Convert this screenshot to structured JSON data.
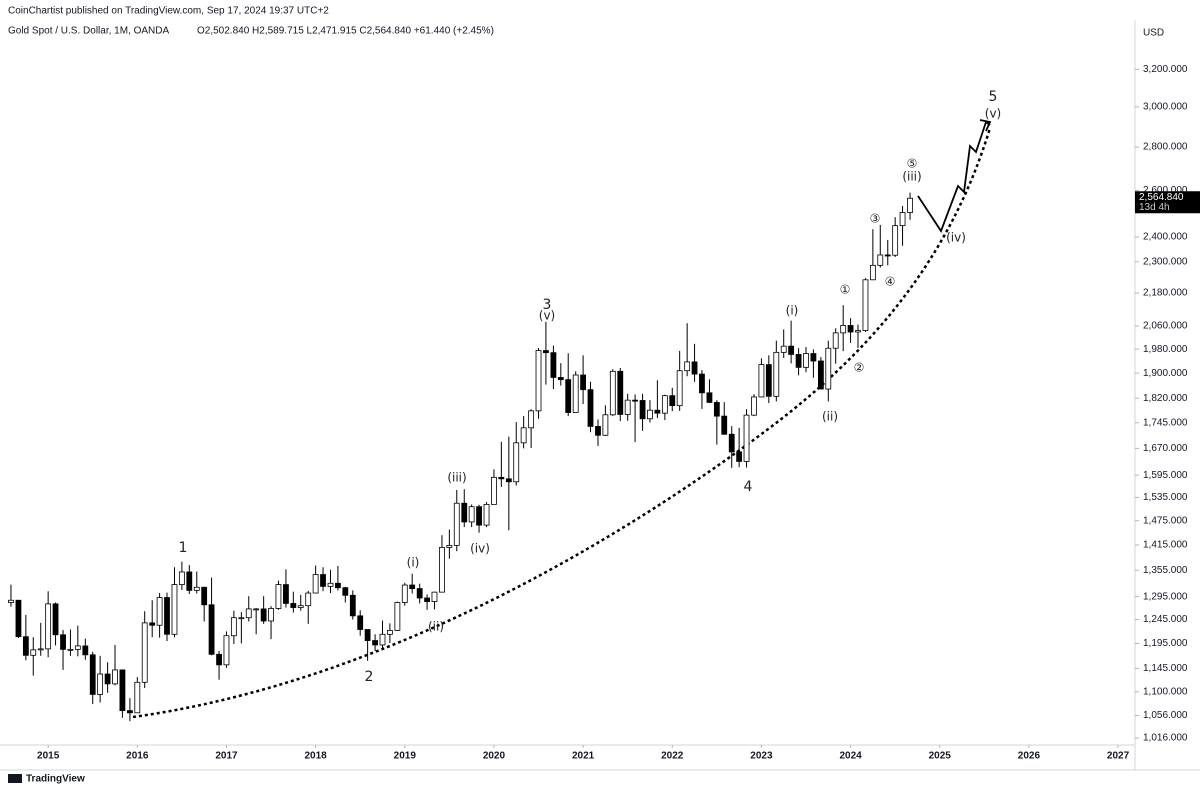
{
  "header": {
    "author_line": "CoinChartist published on TradingView.com, Sep 17, 2024 19:37 UTC+2",
    "symbol": "Gold Spot / U.S. Dollar, 1M, OANDA",
    "ohlc": "O2,502.840  H2,589.715  L2,471.915  C2,564.840  +61.440 (+2.45%)"
  },
  "footer": {
    "brand": "TradingView"
  },
  "chart_data": {
    "type": "candlestick",
    "y_axis_label": "USD",
    "log_scale": true,
    "grid": false,
    "up_color": "#ffffff",
    "down_color": "#000000",
    "edge_color": "#000000",
    "last_price_label": "2,564.840",
    "countdown": "13d 4h",
    "xlim": [
      2014.46,
      2027.19
    ],
    "xticks": [
      2015,
      2016,
      2017,
      2018,
      2019,
      2020,
      2021,
      2022,
      2023,
      2024,
      2025,
      2026,
      2027
    ],
    "ylim": [
      1004,
      3336
    ],
    "yticks": [
      {
        "value": 1016,
        "label": "1,016.000"
      },
      {
        "value": 1056,
        "label": "1,056.000"
      },
      {
        "value": 1100,
        "label": "1,100.000"
      },
      {
        "value": 1145,
        "label": "1,145.000"
      },
      {
        "value": 1195,
        "label": "1,195.000"
      },
      {
        "value": 1245,
        "label": "1,245.000"
      },
      {
        "value": 1295,
        "label": "1,295.000"
      },
      {
        "value": 1355,
        "label": "1,355.000"
      },
      {
        "value": 1415,
        "label": "1,415.000"
      },
      {
        "value": 1475,
        "label": "1,475.000"
      },
      {
        "value": 1535,
        "label": "1,535.000"
      },
      {
        "value": 1595,
        "label": "1,595.000"
      },
      {
        "value": 1670,
        "label": "1,670.000"
      },
      {
        "value": 1745,
        "label": "1,745.000"
      },
      {
        "value": 1820,
        "label": "1,820.000"
      },
      {
        "value": 1900,
        "label": "1,900.000"
      },
      {
        "value": 1980,
        "label": "1,980.000"
      },
      {
        "value": 2060,
        "label": "2,060.000"
      },
      {
        "value": 2180,
        "label": "2,180.000"
      },
      {
        "value": 2300,
        "label": "2,300.000"
      },
      {
        "value": 2400,
        "label": "2,400.000"
      },
      {
        "value": 2600,
        "label": "2,600.000"
      },
      {
        "value": 2800,
        "label": "2,800.000"
      },
      {
        "value": 3000,
        "label": "3,000.000"
      },
      {
        "value": 3200,
        "label": "3,200.000"
      }
    ],
    "x": [
      2014.583,
      2014.667,
      2014.75,
      2014.833,
      2014.917,
      2015,
      2015.083,
      2015.167,
      2015.25,
      2015.333,
      2015.417,
      2015.5,
      2015.583,
      2015.667,
      2015.75,
      2015.833,
      2015.917,
      2016,
      2016.083,
      2016.167,
      2016.25,
      2016.333,
      2016.417,
      2016.5,
      2016.583,
      2016.667,
      2016.75,
      2016.833,
      2016.917,
      2017,
      2017.083,
      2017.167,
      2017.25,
      2017.333,
      2017.417,
      2017.5,
      2017.583,
      2017.667,
      2017.75,
      2017.833,
      2017.917,
      2018,
      2018.083,
      2018.167,
      2018.25,
      2018.333,
      2018.417,
      2018.5,
      2018.583,
      2018.667,
      2018.75,
      2018.833,
      2018.917,
      2019,
      2019.083,
      2019.167,
      2019.25,
      2019.333,
      2019.417,
      2019.5,
      2019.583,
      2019.667,
      2019.75,
      2019.833,
      2019.917,
      2020,
      2020.083,
      2020.167,
      2020.25,
      2020.333,
      2020.417,
      2020.5,
      2020.583,
      2020.667,
      2020.75,
      2020.833,
      2020.917,
      2021,
      2021.083,
      2021.167,
      2021.25,
      2021.333,
      2021.417,
      2021.5,
      2021.583,
      2021.667,
      2021.75,
      2021.833,
      2021.917,
      2022,
      2022.083,
      2022.167,
      2022.25,
      2022.333,
      2022.417,
      2022.5,
      2022.583,
      2022.667,
      2022.75,
      2022.833,
      2022.917,
      2023,
      2023.083,
      2023.167,
      2023.25,
      2023.333,
      2023.417,
      2023.5,
      2023.583,
      2023.667,
      2023.75,
      2023.833,
      2023.917,
      2024,
      2024.083,
      2024.167,
      2024.25,
      2024.333,
      2024.417,
      2024.5,
      2024.583,
      2024.667
    ],
    "open": [
      1282,
      1287,
      1209,
      1171,
      1182,
      1184,
      1279,
      1213,
      1183,
      1183,
      1190,
      1172,
      1095,
      1134,
      1115,
      1142,
      1065,
      1061,
      1118,
      1238,
      1233,
      1293,
      1214,
      1322,
      1351,
      1309,
      1316,
      1277,
      1173,
      1152,
      1211,
      1249,
      1249,
      1268,
      1268,
      1242,
      1269,
      1322,
      1280,
      1271,
      1275,
      1303,
      1345,
      1318,
      1325,
      1315,
      1298,
      1253,
      1224,
      1201,
      1192,
      1214,
      1222,
      1282,
      1321,
      1313,
      1292,
      1284,
      1305,
      1409,
      1414,
      1520,
      1472,
      1511,
      1464,
      1517,
      1589,
      1585,
      1577,
      1686,
      1730,
      1781,
      1975,
      1968,
      1886,
      1879,
      1776,
      1894,
      1847,
      1734,
      1708,
      1769,
      1906,
      1770,
      1814,
      1813,
      1757,
      1783,
      1774,
      1828,
      1797,
      1908,
      1937,
      1897,
      1837,
      1807,
      1765,
      1711,
      1660,
      1633,
      1768,
      1824,
      1928,
      1826,
      1969,
      1990,
      1962,
      1919,
      1965,
      1940,
      1849,
      1983,
      2036,
      2062,
      2039,
      2044,
      2230,
      2286,
      2327,
      2326,
      2447,
      2502.84
    ],
    "high": [
      1322,
      1287,
      1255,
      1208,
      1238,
      1307,
      1282,
      1223,
      1224,
      1232,
      1205,
      1178,
      1170,
      1157,
      1192,
      1143,
      1088,
      1128,
      1263,
      1287,
      1303,
      1304,
      1362,
      1375,
      1367,
      1352,
      1317,
      1338,
      1180,
      1220,
      1264,
      1261,
      1296,
      1270,
      1296,
      1274,
      1331,
      1357,
      1306,
      1299,
      1308,
      1366,
      1362,
      1356,
      1365,
      1317,
      1309,
      1265,
      1223,
      1214,
      1243,
      1237,
      1284,
      1326,
      1347,
      1324,
      1300,
      1306,
      1439,
      1453,
      1555,
      1557,
      1517,
      1516,
      1523,
      1611,
      1689,
      1704,
      1747,
      1765,
      1786,
      1984,
      2075,
      1992,
      1933,
      1966,
      1906,
      1959,
      1872,
      1755,
      1798,
      1913,
      1917,
      1834,
      1832,
      1834,
      1814,
      1877,
      1831,
      1853,
      1974,
      2070,
      1998,
      1910,
      1880,
      1814,
      1808,
      1735,
      1730,
      1786,
      1833,
      1949,
      1959,
      2009,
      2048,
      2079,
      1983,
      1987,
      1979,
      1953,
      2009,
      2052,
      2135,
      2088,
      2065,
      2236,
      2432,
      2450,
      2388,
      2483,
      2531,
      2589.715
    ],
    "low": [
      1273,
      1206,
      1161,
      1131,
      1170,
      1167,
      1191,
      1142,
      1170,
      1169,
      1162,
      1077,
      1080,
      1098,
      1112,
      1052,
      1046,
      1061,
      1107,
      1208,
      1207,
      1200,
      1208,
      1310,
      1301,
      1302,
      1241,
      1171,
      1123,
      1146,
      1194,
      1195,
      1241,
      1214,
      1236,
      1204,
      1266,
      1271,
      1260,
      1264,
      1236,
      1302,
      1307,
      1303,
      1309,
      1282,
      1245,
      1211,
      1160,
      1180,
      1182,
      1196,
      1221,
      1275,
      1302,
      1280,
      1266,
      1267,
      1305,
      1382,
      1400,
      1459,
      1459,
      1445,
      1459,
      1517,
      1563,
      1451,
      1567,
      1670,
      1671,
      1757,
      1863,
      1849,
      1860,
      1765,
      1776,
      1802,
      1717,
      1677,
      1706,
      1765,
      1750,
      1751,
      1688,
      1721,
      1746,
      1759,
      1753,
      1780,
      1781,
      1890,
      1872,
      1787,
      1805,
      1681,
      1709,
      1615,
      1617,
      1616,
      1765,
      1823,
      1805,
      1810,
      1950,
      1932,
      1893,
      1903,
      1885,
      1848,
      1810,
      1931,
      1973,
      2001,
      1984,
      2039,
      2229,
      2277,
      2286,
      2319,
      2364,
      2471.915
    ],
    "close": [
      1287,
      1209,
      1171,
      1182,
      1184,
      1279,
      1213,
      1183,
      1183,
      1190,
      1172,
      1095,
      1134,
      1115,
      1142,
      1065,
      1061,
      1118,
      1238,
      1233,
      1293,
      1214,
      1322,
      1351,
      1309,
      1316,
      1277,
      1173,
      1152,
      1211,
      1249,
      1249,
      1268,
      1268,
      1242,
      1269,
      1322,
      1280,
      1271,
      1275,
      1303,
      1345,
      1318,
      1325,
      1315,
      1298,
      1253,
      1224,
      1201,
      1192,
      1214,
      1222,
      1282,
      1321,
      1313,
      1292,
      1284,
      1305,
      1409,
      1414,
      1520,
      1472,
      1511,
      1464,
      1517,
      1589,
      1585,
      1577,
      1686,
      1730,
      1781,
      1975,
      1968,
      1886,
      1879,
      1776,
      1894,
      1847,
      1734,
      1708,
      1769,
      1906,
      1770,
      1814,
      1813,
      1757,
      1783,
      1774,
      1828,
      1797,
      1908,
      1937,
      1897,
      1837,
      1807,
      1765,
      1711,
      1660,
      1633,
      1768,
      1824,
      1928,
      1826,
      1969,
      1990,
      1962,
      1919,
      1965,
      1940,
      1849,
      1983,
      2036,
      2062,
      2039,
      2044,
      2230,
      2286,
      2327,
      2326,
      2447,
      2503,
      2564.84
    ],
    "annotations": [
      "1",
      "2",
      "3",
      "(v)",
      "4",
      "5",
      "(v)",
      "(i)",
      "(ii)",
      "(iii)",
      "(iv)",
      "(i)",
      "(ii)",
      "①",
      "②",
      "③",
      "④",
      "⑤",
      "(iii)",
      "(iv)"
    ]
  }
}
